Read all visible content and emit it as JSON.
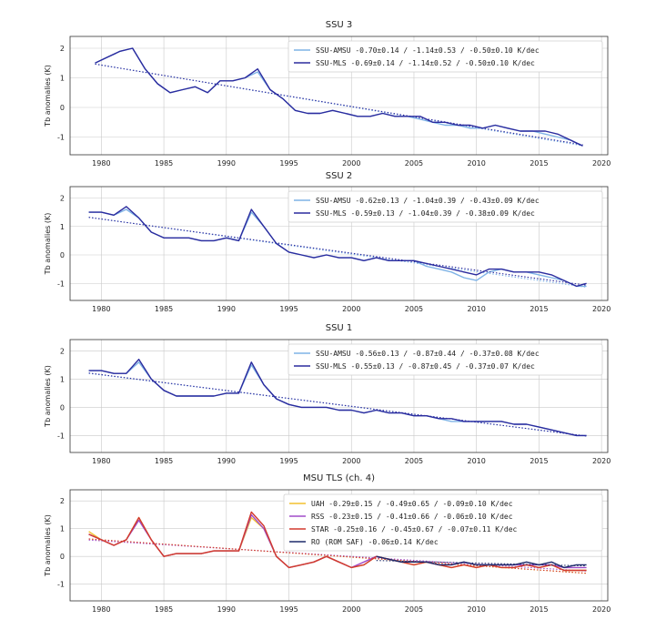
{
  "chart_data": [
    {
      "type": "line",
      "title": "SSU 3",
      "ylabel": "Tb anomalies (K)",
      "xlim": [
        1977.5,
        2020.5
      ],
      "ylim": [
        -1.6,
        2.4
      ],
      "xticks": [
        "1980",
        "1985",
        "1990",
        "1995",
        "2000",
        "2005",
        "2010",
        "2015",
        "2020"
      ],
      "yticks": [
        "2",
        "1",
        "0",
        "-1"
      ],
      "grid": true,
      "legend_position": "top-right",
      "series": [
        {
          "name": "SSU-AMSU",
          "color": "#7fb3e6",
          "legend": "SSU-AMSU  -0.70±0.14 / -1.14±0.53 / -0.50±0.10 K/dec",
          "x": [
            1979.5,
            1980.5,
            1981.5,
            1982.5,
            1983.5,
            1984.5,
            1985.5,
            1986.5,
            1987.5,
            1988.5,
            1989.5,
            1990.5,
            1991.5,
            1992.5,
            1993.5,
            1994.5,
            1995.5,
            1996.5,
            1997.5,
            1998.5,
            1999.5,
            2000.5,
            2001.5,
            2002.5,
            2003.5,
            2004.5,
            2005.5,
            2006.5,
            2007.5,
            2008.5,
            2009.5,
            2010.5,
            2011.5,
            2012.5,
            2013.5,
            2014.5,
            2015.5,
            2016.5,
            2017.5,
            2018.5
          ],
          "y": [
            1.5,
            1.7,
            1.9,
            2.0,
            1.3,
            0.8,
            0.5,
            0.6,
            0.7,
            0.5,
            0.9,
            0.9,
            1.0,
            1.2,
            0.6,
            0.3,
            -0.1,
            -0.2,
            -0.2,
            -0.1,
            -0.2,
            -0.3,
            -0.3,
            -0.2,
            -0.3,
            -0.3,
            -0.4,
            -0.5,
            -0.6,
            -0.6,
            -0.7,
            -0.7,
            -0.6,
            -0.7,
            -0.8,
            -0.8,
            -0.9,
            -1.0,
            -1.1,
            -1.3
          ]
        },
        {
          "name": "SSU-MLS",
          "color": "#2b2b9e",
          "legend": "SSU-MLS   -0.69±0.14 / -1.14±0.52 / -0.50±0.10 K/dec",
          "x": [
            1979.5,
            1980.5,
            1981.5,
            1982.5,
            1983.5,
            1984.5,
            1985.5,
            1986.5,
            1987.5,
            1988.5,
            1989.5,
            1990.5,
            1991.5,
            1992.5,
            1993.5,
            1994.5,
            1995.5,
            1996.5,
            1997.5,
            1998.5,
            1999.5,
            2000.5,
            2001.5,
            2002.5,
            2003.5,
            2004.5,
            2005.5,
            2006.5,
            2007.5,
            2008.5,
            2009.5,
            2010.5,
            2011.5,
            2012.5,
            2013.5,
            2014.5,
            2015.5,
            2016.5,
            2017.5,
            2018.5
          ],
          "y": [
            1.5,
            1.7,
            1.9,
            2.0,
            1.3,
            0.8,
            0.5,
            0.6,
            0.7,
            0.5,
            0.9,
            0.9,
            1.0,
            1.3,
            0.6,
            0.3,
            -0.1,
            -0.2,
            -0.2,
            -0.1,
            -0.2,
            -0.3,
            -0.3,
            -0.2,
            -0.3,
            -0.3,
            -0.3,
            -0.5,
            -0.5,
            -0.6,
            -0.6,
            -0.7,
            -0.6,
            -0.7,
            -0.8,
            -0.8,
            -0.8,
            -0.9,
            -1.1,
            -1.3
          ]
        }
      ]
    },
    {
      "type": "line",
      "title": "SSU 2",
      "ylabel": "Tb anomalies (K)",
      "xlim": [
        1977.5,
        2020.5
      ],
      "ylim": [
        -1.6,
        2.4
      ],
      "xticks": [
        "1980",
        "1985",
        "1990",
        "1995",
        "2000",
        "2005",
        "2010",
        "2015",
        "2020"
      ],
      "yticks": [
        "2",
        "1",
        "0",
        "-1"
      ],
      "grid": true,
      "legend_position": "top-right",
      "series": [
        {
          "name": "SSU-AMSU",
          "color": "#7fb3e6",
          "legend": "SSU-AMSU -0.62±0.13 / -1.04±0.39 / -0.43±0.09 K/dec",
          "x": [
            1979.0,
            1980.0,
            1981.0,
            1982.0,
            1983.0,
            1984.0,
            1985.0,
            1986.0,
            1987.0,
            1988.0,
            1989.0,
            1990.0,
            1991.0,
            1992.0,
            1993.0,
            1994.0,
            1995.0,
            1996.0,
            1997.0,
            1998.0,
            1999.0,
            2000.0,
            2001.0,
            2002.0,
            2003.0,
            2004.0,
            2005.0,
            2006.0,
            2007.0,
            2008.0,
            2009.0,
            2010.0,
            2011.0,
            2012.0,
            2013.0,
            2014.0,
            2015.0,
            2016.0,
            2017.0,
            2018.0,
            2018.8
          ],
          "y": [
            1.5,
            1.5,
            1.4,
            1.6,
            1.3,
            0.8,
            0.6,
            0.6,
            0.6,
            0.5,
            0.5,
            0.6,
            0.5,
            1.5,
            1.0,
            0.4,
            0.1,
            0.0,
            -0.1,
            0.0,
            -0.1,
            -0.1,
            -0.2,
            -0.1,
            -0.2,
            -0.2,
            -0.2,
            -0.4,
            -0.5,
            -0.6,
            -0.8,
            -0.9,
            -0.6,
            -0.5,
            -0.6,
            -0.6,
            -0.7,
            -0.8,
            -0.9,
            -1.1,
            -1.1
          ]
        },
        {
          "name": "SSU-MLS",
          "color": "#2b2b9e",
          "legend": "SSU-MLS  -0.59±0.13 / -1.04±0.39 / -0.38±0.09 K/dec",
          "x": [
            1979.0,
            1980.0,
            1981.0,
            1982.0,
            1983.0,
            1984.0,
            1985.0,
            1986.0,
            1987.0,
            1988.0,
            1989.0,
            1990.0,
            1991.0,
            1992.0,
            1993.0,
            1994.0,
            1995.0,
            1996.0,
            1997.0,
            1998.0,
            1999.0,
            2000.0,
            2001.0,
            2002.0,
            2003.0,
            2004.0,
            2005.0,
            2006.0,
            2007.0,
            2008.0,
            2009.0,
            2010.0,
            2011.0,
            2012.0,
            2013.0,
            2014.0,
            2015.0,
            2016.0,
            2017.0,
            2018.0,
            2018.8
          ],
          "y": [
            1.5,
            1.5,
            1.4,
            1.7,
            1.3,
            0.8,
            0.6,
            0.6,
            0.6,
            0.5,
            0.5,
            0.6,
            0.5,
            1.6,
            1.0,
            0.4,
            0.1,
            0.0,
            -0.1,
            0.0,
            -0.1,
            -0.1,
            -0.2,
            -0.1,
            -0.2,
            -0.2,
            -0.2,
            -0.3,
            -0.4,
            -0.5,
            -0.6,
            -0.7,
            -0.5,
            -0.5,
            -0.6,
            -0.6,
            -0.6,
            -0.7,
            -0.9,
            -1.1,
            -1.0
          ]
        }
      ]
    },
    {
      "type": "line",
      "title": "SSU 1",
      "ylabel": "Tb anomalies (K)",
      "xlim": [
        1977.5,
        2020.5
      ],
      "ylim": [
        -1.6,
        2.4
      ],
      "xticks": [
        "1980",
        "1985",
        "1990",
        "1995",
        "2000",
        "2005",
        "2010",
        "2015",
        "2020"
      ],
      "yticks": [
        "2",
        "1",
        "0",
        "-1"
      ],
      "grid": true,
      "legend_position": "top-right",
      "series": [
        {
          "name": "SSU-AMSU",
          "color": "#7fb3e6",
          "legend": "SSU-AMSU -0.56±0.13 / -0.87±0.44 / -0.37±0.08 K/dec",
          "x": [
            1979.0,
            1980.0,
            1981.0,
            1982.0,
            1983.0,
            1984.0,
            1985.0,
            1986.0,
            1987.0,
            1988.0,
            1989.0,
            1990.0,
            1991.0,
            1992.0,
            1993.0,
            1994.0,
            1995.0,
            1996.0,
            1997.0,
            1998.0,
            1999.0,
            2000.0,
            2001.0,
            2002.0,
            2003.0,
            2004.0,
            2005.0,
            2006.0,
            2007.0,
            2008.0,
            2009.0,
            2010.0,
            2011.0,
            2012.0,
            2013.0,
            2014.0,
            2015.0,
            2016.0,
            2017.0,
            2018.0,
            2018.8
          ],
          "y": [
            1.3,
            1.3,
            1.2,
            1.2,
            1.6,
            1.0,
            0.6,
            0.4,
            0.4,
            0.4,
            0.4,
            0.5,
            0.5,
            1.5,
            0.8,
            0.3,
            0.1,
            0.0,
            0.0,
            0.0,
            -0.1,
            -0.1,
            -0.2,
            -0.1,
            -0.2,
            -0.2,
            -0.3,
            -0.3,
            -0.4,
            -0.5,
            -0.5,
            -0.5,
            -0.5,
            -0.5,
            -0.6,
            -0.6,
            -0.7,
            -0.8,
            -0.9,
            -1.0,
            -1.0
          ]
        },
        {
          "name": "SSU-MLS",
          "color": "#2b2b9e",
          "legend": "SSU-MLS  -0.55±0.13 / -0.87±0.45 / -0.37±0.07 K/dec",
          "x": [
            1979.0,
            1980.0,
            1981.0,
            1982.0,
            1983.0,
            1984.0,
            1985.0,
            1986.0,
            1987.0,
            1988.0,
            1989.0,
            1990.0,
            1991.0,
            1992.0,
            1993.0,
            1994.0,
            1995.0,
            1996.0,
            1997.0,
            1998.0,
            1999.0,
            2000.0,
            2001.0,
            2002.0,
            2003.0,
            2004.0,
            2005.0,
            2006.0,
            2007.0,
            2008.0,
            2009.0,
            2010.0,
            2011.0,
            2012.0,
            2013.0,
            2014.0,
            2015.0,
            2016.0,
            2017.0,
            2018.0,
            2018.8
          ],
          "y": [
            1.3,
            1.3,
            1.2,
            1.2,
            1.7,
            1.0,
            0.6,
            0.4,
            0.4,
            0.4,
            0.4,
            0.5,
            0.5,
            1.6,
            0.8,
            0.3,
            0.1,
            0.0,
            0.0,
            0.0,
            -0.1,
            -0.1,
            -0.2,
            -0.1,
            -0.2,
            -0.2,
            -0.3,
            -0.3,
            -0.4,
            -0.4,
            -0.5,
            -0.5,
            -0.5,
            -0.5,
            -0.6,
            -0.6,
            -0.7,
            -0.8,
            -0.9,
            -1.0,
            -1.0
          ]
        }
      ]
    },
    {
      "type": "line",
      "title": "MSU TLS (ch. 4)",
      "ylabel": "Tb anomalies (K)",
      "xlim": [
        1977.5,
        2020.5
      ],
      "ylim": [
        -1.6,
        2.4
      ],
      "xticks": [
        "1980",
        "1985",
        "1990",
        "1995",
        "2000",
        "2005",
        "2010",
        "2015",
        "2020"
      ],
      "yticks": [
        "2",
        "1",
        "0",
        "-1"
      ],
      "grid": true,
      "legend_position": "top-right",
      "series": [
        {
          "name": "UAH",
          "color": "#f2c12e",
          "legend": "UAH          -0.29±0.15 / -0.49±0.65 / -0.09±0.10 K/dec",
          "x": [
            1979.0,
            1980.0,
            1981.0,
            1982.0,
            1983.0,
            1984.0,
            1985.0,
            1986.0,
            1987.0,
            1988.0,
            1989.0,
            1990.0,
            1991.0,
            1992.0,
            1993.0,
            1994.0,
            1995.0,
            1996.0,
            1997.0,
            1998.0,
            1999.0,
            2000.0,
            2001.0,
            2002.0,
            2003.0,
            2004.0,
            2005.0,
            2006.0,
            2007.0,
            2008.0,
            2009.0,
            2010.0,
            2011.0,
            2012.0,
            2013.0,
            2014.0,
            2015.0,
            2016.0,
            2017.0,
            2018.0,
            2018.8
          ],
          "y": [
            0.9,
            0.6,
            0.4,
            0.6,
            1.4,
            0.6,
            0.0,
            0.1,
            0.1,
            0.1,
            0.2,
            0.2,
            0.2,
            1.4,
            1.0,
            0.0,
            -0.4,
            -0.3,
            -0.2,
            0.0,
            -0.2,
            -0.4,
            -0.3,
            0.0,
            -0.1,
            -0.2,
            -0.3,
            -0.2,
            -0.3,
            -0.4,
            -0.3,
            -0.4,
            -0.3,
            -0.4,
            -0.4,
            -0.3,
            -0.4,
            -0.3,
            -0.5,
            -0.5,
            -0.5
          ]
        },
        {
          "name": "RSS",
          "color": "#a04cc8",
          "legend": "RSS          -0.23±0.15 / -0.41±0.66 / -0.06±0.10 K/dec",
          "x": [
            1979.0,
            1980.0,
            1981.0,
            1982.0,
            1983.0,
            1984.0,
            1985.0,
            1986.0,
            1987.0,
            1988.0,
            1989.0,
            1990.0,
            1991.0,
            1992.0,
            1993.0,
            1994.0,
            1995.0,
            1996.0,
            1997.0,
            1998.0,
            1999.0,
            2000.0,
            2001.0,
            2002.0,
            2003.0,
            2004.0,
            2005.0,
            2006.0,
            2007.0,
            2008.0,
            2009.0,
            2010.0,
            2011.0,
            2012.0,
            2013.0,
            2014.0,
            2015.0,
            2016.0,
            2017.0,
            2018.0,
            2018.8
          ],
          "y": [
            0.8,
            0.6,
            0.4,
            0.6,
            1.3,
            0.6,
            0.0,
            0.1,
            0.1,
            0.1,
            0.2,
            0.2,
            0.2,
            1.5,
            1.0,
            0.0,
            -0.4,
            -0.3,
            -0.2,
            0.0,
            -0.2,
            -0.4,
            -0.2,
            0.0,
            -0.1,
            -0.2,
            -0.2,
            -0.2,
            -0.3,
            -0.3,
            -0.2,
            -0.3,
            -0.3,
            -0.3,
            -0.3,
            -0.3,
            -0.3,
            -0.3,
            -0.4,
            -0.4,
            -0.4
          ]
        },
        {
          "name": "STAR",
          "color": "#d23a2f",
          "legend": "STAR         -0.25±0.16 / -0.45±0.67 / -0.07±0.11 K/dec",
          "x": [
            1979.0,
            1980.0,
            1981.0,
            1982.0,
            1983.0,
            1984.0,
            1985.0,
            1986.0,
            1987.0,
            1988.0,
            1989.0,
            1990.0,
            1991.0,
            1992.0,
            1993.0,
            1994.0,
            1995.0,
            1996.0,
            1997.0,
            1998.0,
            1999.0,
            2000.0,
            2001.0,
            2002.0,
            2003.0,
            2004.0,
            2005.0,
            2006.0,
            2007.0,
            2008.0,
            2009.0,
            2010.0,
            2011.0,
            2012.0,
            2013.0,
            2014.0,
            2015.0,
            2016.0,
            2017.0,
            2018.0,
            2018.8
          ],
          "y": [
            0.8,
            0.6,
            0.4,
            0.6,
            1.4,
            0.6,
            0.0,
            0.1,
            0.1,
            0.1,
            0.2,
            0.2,
            0.2,
            1.6,
            1.1,
            0.0,
            -0.4,
            -0.3,
            -0.2,
            0.0,
            -0.2,
            -0.4,
            -0.3,
            0.0,
            -0.1,
            -0.2,
            -0.3,
            -0.2,
            -0.3,
            -0.4,
            -0.3,
            -0.4,
            -0.3,
            -0.4,
            -0.4,
            -0.3,
            -0.4,
            -0.3,
            -0.5,
            -0.5,
            -0.5
          ]
        },
        {
          "name": "RO (ROM SAF)",
          "color": "#1e2b6b",
          "legend": "RO (ROM SAF)                                 -0.06±0.14 K/dec",
          "x": [
            2002.0,
            2003.0,
            2004.0,
            2005.0,
            2006.0,
            2007.0,
            2008.0,
            2009.0,
            2010.0,
            2011.0,
            2012.0,
            2013.0,
            2014.0,
            2015.0,
            2016.0,
            2017.0,
            2018.0,
            2018.8
          ],
          "y": [
            0.0,
            -0.1,
            -0.2,
            -0.2,
            -0.2,
            -0.3,
            -0.3,
            -0.2,
            -0.3,
            -0.3,
            -0.3,
            -0.3,
            -0.2,
            -0.3,
            -0.2,
            -0.4,
            -0.3,
            -0.3
          ]
        }
      ]
    }
  ]
}
